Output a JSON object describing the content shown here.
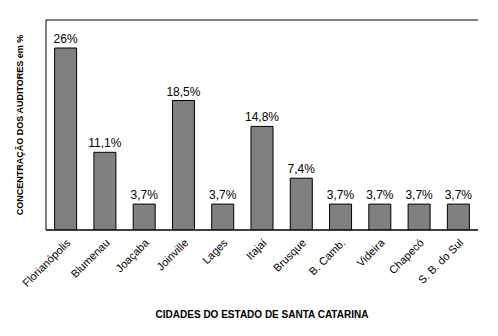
{
  "chart_data": {
    "type": "bar",
    "x_label": "CIDADES DO ESTADO DE SANTA CATARINA",
    "y_label": "CONCENTRAÇÃO DOS AUDITORES em %",
    "categories": [
      "Florianópolis",
      "Blumenau",
      "Joaçaba",
      "Joinville",
      "Lages",
      "Itajaí",
      "Brusque",
      "B. Camb.",
      "Videira",
      "Chapecó",
      "S. B. do Sul"
    ],
    "values": [
      26,
      11.1,
      3.7,
      18.5,
      3.7,
      14.8,
      7.4,
      3.7,
      3.7,
      3.7,
      3.7
    ],
    "value_labels": [
      "26%",
      "11,1%",
      "3,7%",
      "18,5%",
      "3,7%",
      "14,8%",
      "7,4%",
      "3,7%",
      "3,7%",
      "3,7%",
      "3,7%"
    ],
    "data_labels": true,
    "color": "#808080",
    "ylim": [
      0,
      30
    ],
    "yticks": [
      0,
      5,
      10,
      15,
      20,
      25,
      30
    ],
    "grid": true,
    "tick_labels": "x"
  }
}
